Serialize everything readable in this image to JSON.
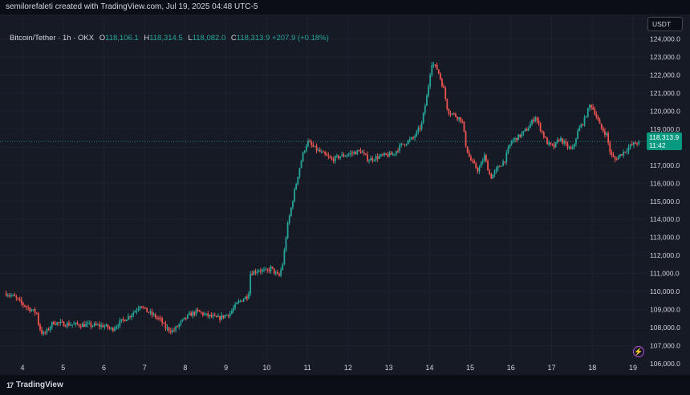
{
  "header": {
    "credit": "semilorefaleti created with TradingView.com, Jul 19, 2025 04:48 UTC-5"
  },
  "legend": {
    "symbol": "Bitcoin/Tether · 1h · OKX",
    "open_label": "O",
    "open": "118,106.1",
    "high_label": "H",
    "high": "118,314.5",
    "low_label": "L",
    "low": "118,082.0",
    "close_label": "C",
    "close": "118,313.9",
    "change": "+207.9 (+0.18%)"
  },
  "currency_button": "USDT",
  "last_price": {
    "price": "118,313.9",
    "countdown": "11:42"
  },
  "footer": {
    "logo_text": "TradingView",
    "logo_mark": "17"
  },
  "colors": {
    "up": "#26a69a",
    "down": "#ef5350",
    "background": "#161a25",
    "grid": "#1e222d",
    "price_tag": "#089981"
  },
  "icons": {
    "alert": "lightning-icon"
  },
  "chart_data": {
    "type": "candlestick",
    "title": "Bitcoin/Tether · 1h · OKX",
    "ylim": [
      105600,
      124200
    ],
    "xlim": [
      3.6,
      19.3
    ],
    "y_ticks": [
      106000,
      107000,
      108000,
      109000,
      110000,
      111000,
      112000,
      113000,
      114000,
      115000,
      116000,
      117000,
      118000,
      119000,
      120000,
      121000,
      122000,
      123000,
      124000
    ],
    "y_tick_labels": [
      "106,000.0",
      "107,000.0",
      "108,000.0",
      "109,000.0",
      "110,000.0",
      "111,000.0",
      "112,000.0",
      "113,000.0",
      "114,000.0",
      "115,000.0",
      "116,000.0",
      "117,000.0",
      "118,000.0",
      "119,000.0",
      "120,000.0",
      "121,000.0",
      "122,000.0",
      "123,000.0",
      "124,000.0"
    ],
    "x_ticks": [
      4,
      5,
      6,
      7,
      8,
      9,
      10,
      11,
      12,
      13,
      14,
      15,
      16,
      17,
      18,
      19
    ],
    "x_tick_labels": [
      "4",
      "5",
      "6",
      "7",
      "8",
      "9",
      "10",
      "11",
      "12",
      "13",
      "14",
      "15",
      "16",
      "17",
      "18",
      "19"
    ],
    "last_price": 118313.9,
    "grid": true,
    "price_path": [
      [
        3.6,
        109900
      ],
      [
        3.8,
        109700
      ],
      [
        4.0,
        109300
      ],
      [
        4.2,
        109000
      ],
      [
        4.35,
        108800
      ],
      [
        4.4,
        108100
      ],
      [
        4.5,
        107600
      ],
      [
        4.6,
        107800
      ],
      [
        4.75,
        108300
      ],
      [
        5.0,
        108200
      ],
      [
        5.5,
        108150
      ],
      [
        6.0,
        108100
      ],
      [
        6.2,
        107900
      ],
      [
        6.4,
        108300
      ],
      [
        6.6,
        108600
      ],
      [
        6.8,
        109000
      ],
      [
        6.9,
        109300
      ],
      [
        7.0,
        109000
      ],
      [
        7.2,
        108700
      ],
      [
        7.4,
        108400
      ],
      [
        7.5,
        108000
      ],
      [
        7.7,
        107800
      ],
      [
        7.9,
        108300
      ],
      [
        8.1,
        108700
      ],
      [
        8.3,
        108900
      ],
      [
        8.5,
        108700
      ],
      [
        8.8,
        108500
      ],
      [
        9.1,
        108800
      ],
      [
        9.3,
        109400
      ],
      [
        9.55,
        109800
      ],
      [
        9.6,
        111000
      ],
      [
        9.8,
        111200
      ],
      [
        10.0,
        111100
      ],
      [
        10.1,
        111300
      ],
      [
        10.3,
        110800
      ],
      [
        10.4,
        111600
      ],
      [
        10.5,
        113500
      ],
      [
        10.65,
        115200
      ],
      [
        10.8,
        116800
      ],
      [
        10.9,
        117700
      ],
      [
        11.0,
        118300
      ],
      [
        11.2,
        117900
      ],
      [
        11.4,
        117600
      ],
      [
        11.6,
        117300
      ],
      [
        11.8,
        117500
      ],
      [
        12.0,
        117600
      ],
      [
        12.3,
        117800
      ],
      [
        12.5,
        117300
      ],
      [
        12.8,
        117500
      ],
      [
        13.1,
        117600
      ],
      [
        13.3,
        118100
      ],
      [
        13.6,
        118500
      ],
      [
        13.8,
        119200
      ],
      [
        13.95,
        121000
      ],
      [
        14.05,
        122700
      ],
      [
        14.2,
        122300
      ],
      [
        14.35,
        121200
      ],
      [
        14.45,
        120000
      ],
      [
        14.6,
        119800
      ],
      [
        14.8,
        119500
      ],
      [
        14.9,
        118000
      ],
      [
        15.0,
        117300
      ],
      [
        15.2,
        116700
      ],
      [
        15.35,
        117500
      ],
      [
        15.5,
        116300
      ],
      [
        15.7,
        116900
      ],
      [
        15.85,
        117300
      ],
      [
        16.0,
        118300
      ],
      [
        16.2,
        118600
      ],
      [
        16.4,
        119000
      ],
      [
        16.6,
        119700
      ],
      [
        16.75,
        118900
      ],
      [
        16.9,
        118200
      ],
      [
        17.05,
        118000
      ],
      [
        17.2,
        118500
      ],
      [
        17.35,
        118100
      ],
      [
        17.5,
        117800
      ],
      [
        17.65,
        118900
      ],
      [
        17.8,
        119500
      ],
      [
        17.95,
        120400
      ],
      [
        18.05,
        120000
      ],
      [
        18.2,
        119100
      ],
      [
        18.35,
        118700
      ],
      [
        18.45,
        117600
      ],
      [
        18.55,
        117300
      ],
      [
        18.75,
        117700
      ],
      [
        18.95,
        118100
      ],
      [
        19.15,
        118300
      ]
    ]
  }
}
